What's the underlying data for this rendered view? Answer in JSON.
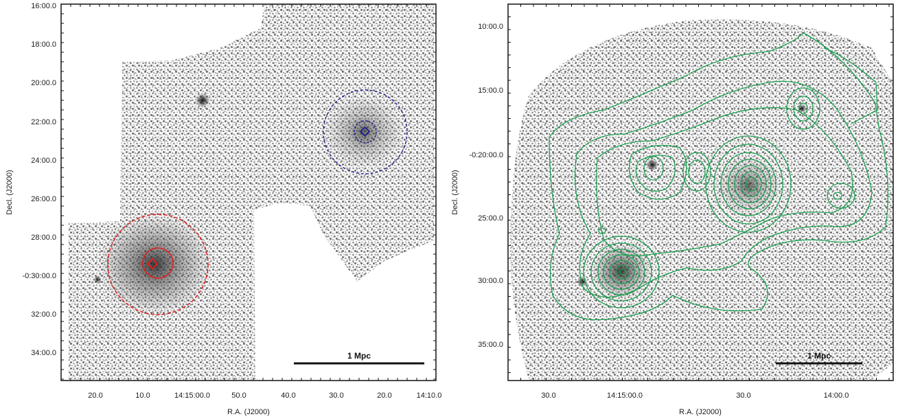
{
  "left_panel": {
    "xlabel": "R.A. (J2000)",
    "ylabel": "Decl. (J2000)",
    "x_ticks": [
      "20.0",
      "10.0",
      "14:15:00.0",
      "50.0",
      "40.0",
      "30.0",
      "20.0",
      "14:10.0"
    ],
    "y_ticks": [
      "16:00.0",
      "18:00.0",
      "20:00.0",
      "22:00.0",
      "24:00.0",
      "26:00.0",
      "28:00.0",
      "-0:30:00.0",
      "32:00.0",
      "34:00.0"
    ],
    "scale_bar_label": "1 Mpc",
    "colors": {
      "red_region": "#e02020",
      "blue_region": "#1c1c8c"
    }
  },
  "right_panel": {
    "xlabel": "R.A. (J2000)",
    "ylabel": "Decl. (J2000)",
    "x_ticks": [
      "30.0",
      "14:15:00.0",
      "30.0",
      "14:00.0"
    ],
    "y_ticks": [
      "10:00.0",
      "15:00.0",
      "-0:20:00.0",
      "25:00.0",
      "30:00.0",
      "35:00.0"
    ],
    "scale_bar_label": "1 Mpc",
    "colors": {
      "contours": "#1aa050"
    }
  }
}
